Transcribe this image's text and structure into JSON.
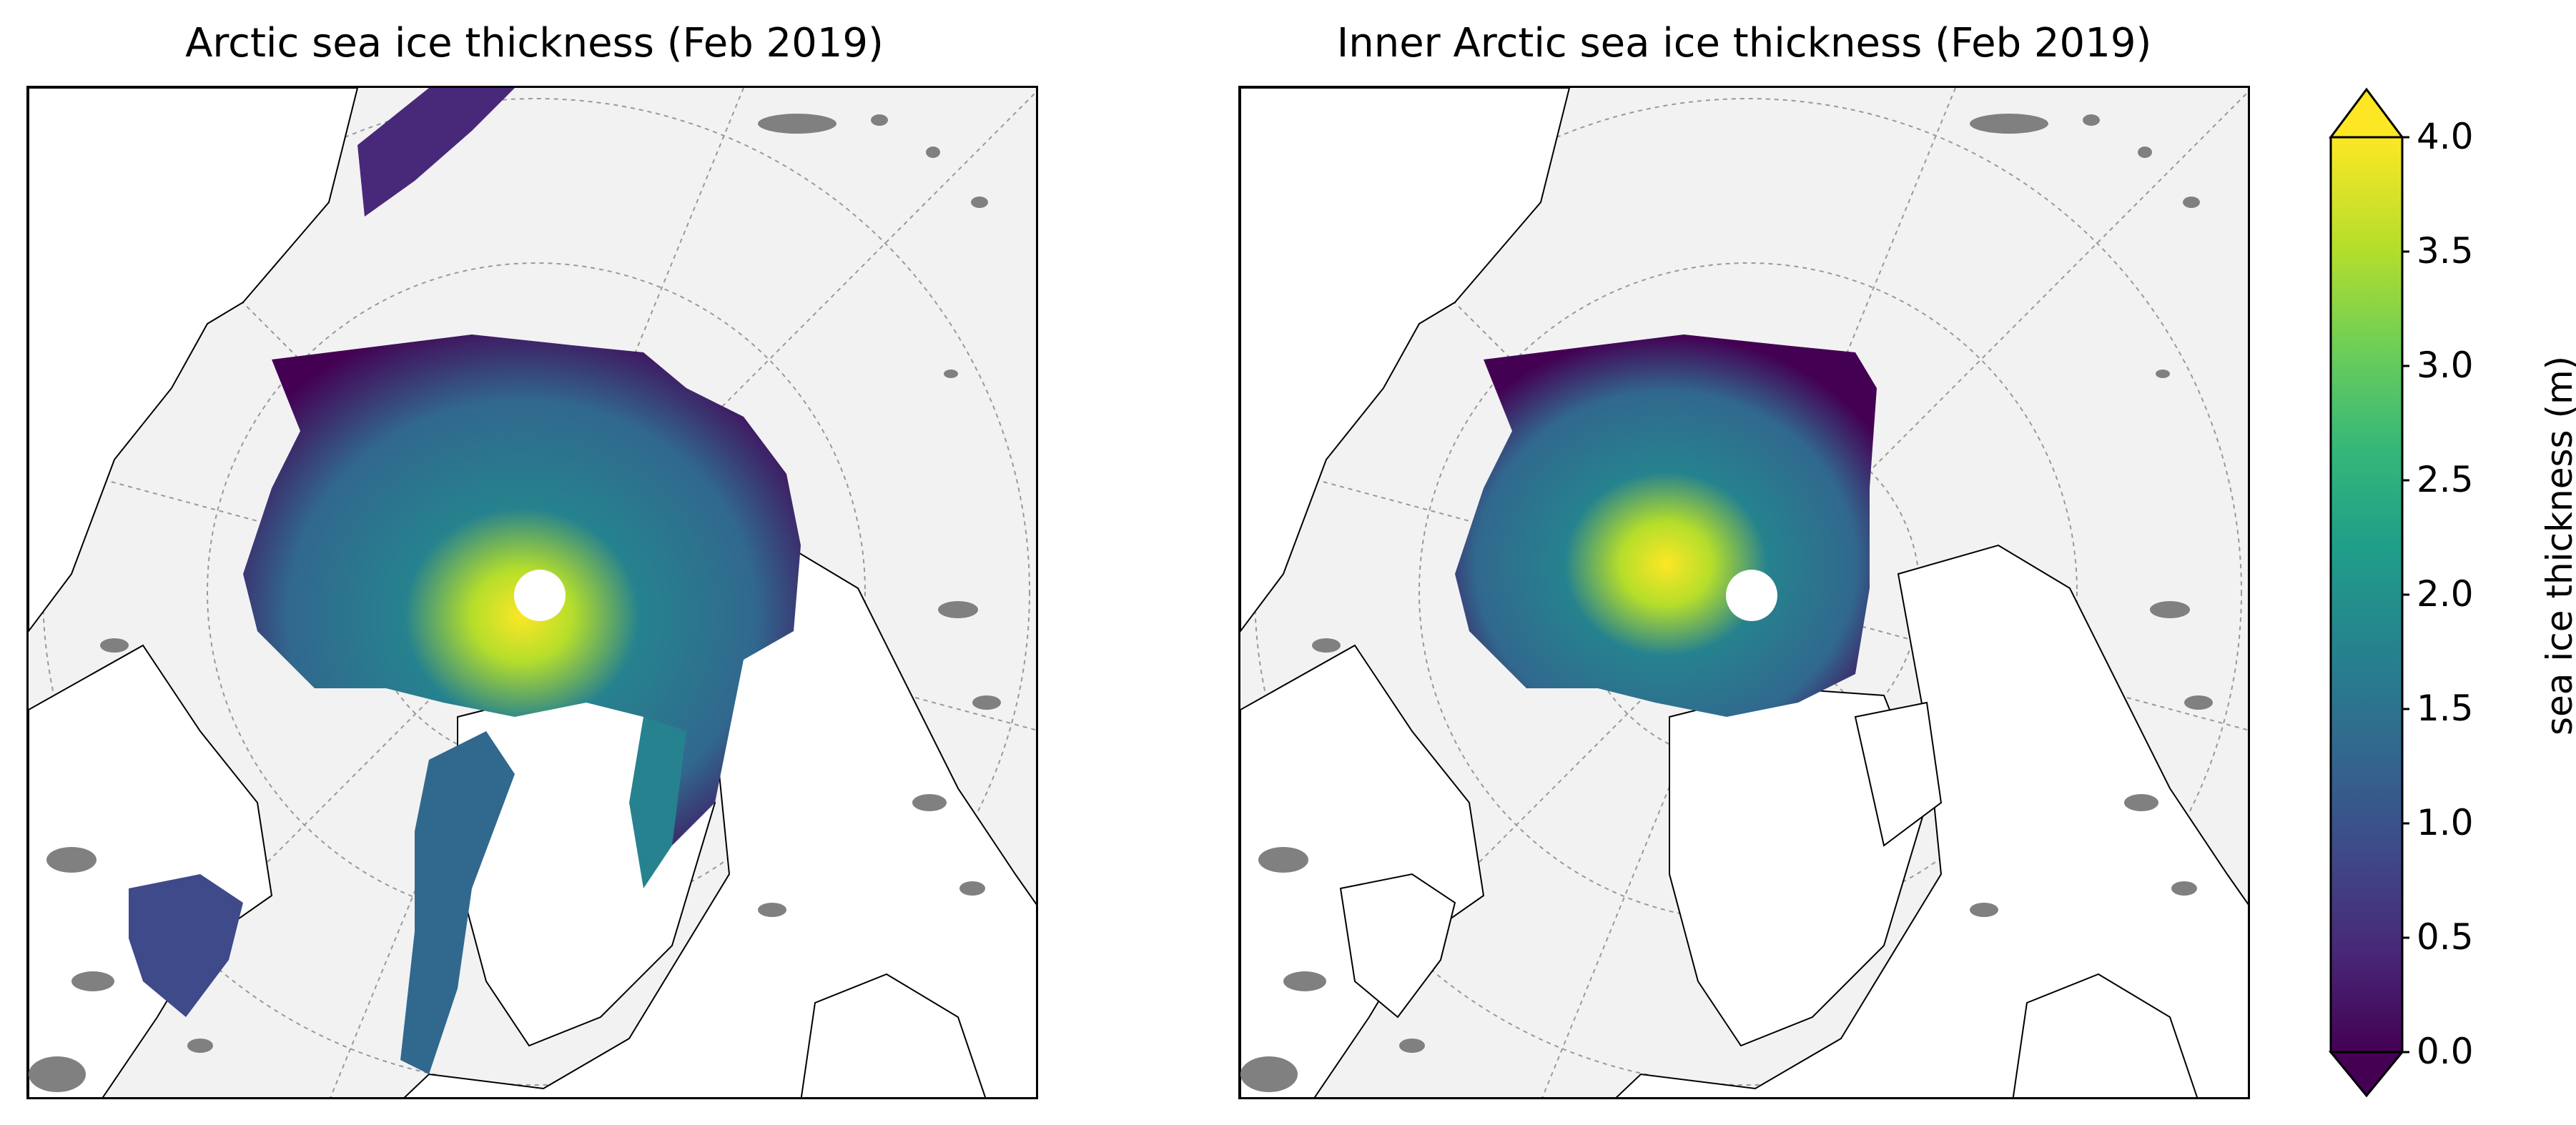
{
  "panels": [
    {
      "title": "Arctic sea ice thickness (Feb 2019)"
    },
    {
      "title": "Inner Arctic sea ice thickness (Feb 2019)"
    }
  ],
  "colorbar": {
    "label": "sea ice thickness (m)",
    "ticks": [
      "0.0",
      "0.5",
      "1.0",
      "1.5",
      "2.0",
      "2.5",
      "3.0",
      "3.5",
      "4.0"
    ],
    "range": [
      0.0,
      4.0
    ],
    "extend": "both",
    "colormap": "viridis",
    "colors": [
      "#440154",
      "#482878",
      "#3e4a89",
      "#31688e",
      "#26828e",
      "#1f9e89",
      "#35b779",
      "#6ece58",
      "#b5de2b",
      "#fde725"
    ]
  },
  "map_style": {
    "ocean_color": "#f2f2f2",
    "land_color": "#ffffff",
    "lake_color": "#808080",
    "coastline_color": "#000000",
    "gridline_color": "#999999"
  }
}
